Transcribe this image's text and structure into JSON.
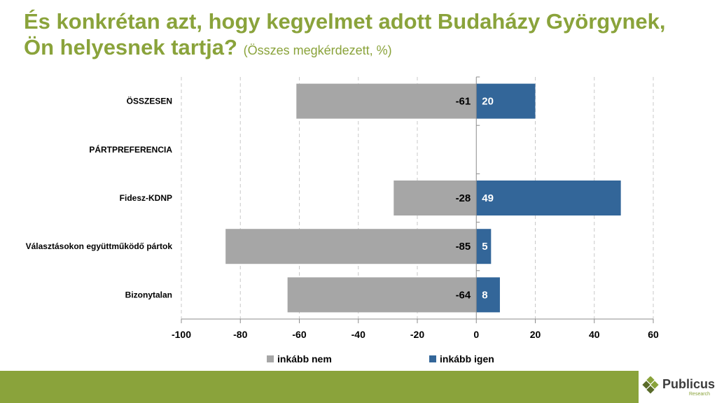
{
  "title": {
    "main": "És konkrétan azt, hogy kegyelmet adott Budaházy Györgynek, Ön helyesnek tartja?",
    "sub": "(Összes megkérdezett, %)"
  },
  "chart_data": {
    "type": "bar",
    "orientation": "horizontal",
    "stacked": "diverging",
    "categories": [
      "ÖSSZESEN",
      "PÁRTPREFERENCIA",
      "Fidesz-KDNP",
      "Választásokon együttműködő pártok",
      "Bizonytalan"
    ],
    "series": [
      {
        "name": "inkább nem",
        "color": "#a6a6a6",
        "values": [
          -61,
          null,
          -28,
          -85,
          -64
        ]
      },
      {
        "name": "inkább igen",
        "color": "#336699",
        "values": [
          20,
          null,
          49,
          5,
          8
        ]
      }
    ],
    "xlim": [
      -100,
      60
    ],
    "xticks": [
      -100,
      -80,
      -60,
      -40,
      -20,
      0,
      20,
      40,
      60
    ],
    "grid": "vertical-dashed",
    "legend": "bottom"
  },
  "logo": {
    "name": "Publicus",
    "sub": "Research",
    "icon": "publicus-diamond-icon"
  },
  "colors": {
    "accent": "#8aa33b",
    "neg": "#a6a6a6",
    "pos": "#336699"
  }
}
